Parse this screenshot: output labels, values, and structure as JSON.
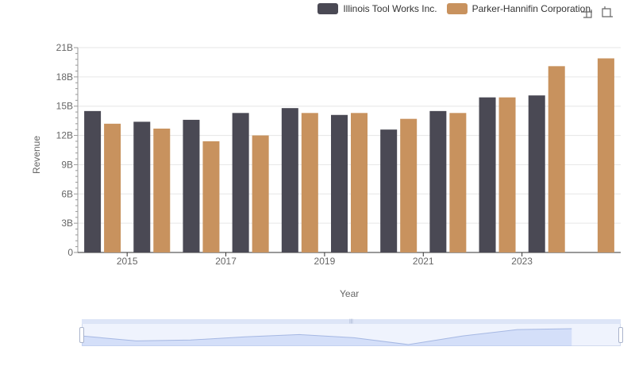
{
  "legend": {
    "items": [
      {
        "label": "Illinois Tool Works Inc.",
        "color": "#4a4954"
      },
      {
        "label": "Parker-Hannifin Corporation",
        "color": "#c8925e"
      }
    ]
  },
  "toolbox": {
    "icons": [
      "zoom-icon",
      "restore-icon"
    ]
  },
  "chart_data": {
    "type": "bar",
    "xlabel": "Year",
    "ylabel": "Revenue",
    "ylim": [
      0,
      21000000000
    ],
    "y_ticks": [
      "0",
      "3B",
      "6B",
      "9B",
      "12B",
      "15B",
      "18B",
      "21B"
    ],
    "x_tick_labels": [
      "2015",
      "2017",
      "2019",
      "2021",
      "2023"
    ],
    "categories": [
      "2014",
      "2015",
      "2016",
      "2017",
      "2018",
      "2019",
      "2020",
      "2021",
      "2022",
      "2023",
      "2024"
    ],
    "series": [
      {
        "name": "Illinois Tool Works Inc.",
        "color": "#4a4954",
        "values": [
          14500000000,
          13400000000,
          13600000000,
          14300000000,
          14800000000,
          14100000000,
          12600000000,
          14500000000,
          15900000000,
          16100000000,
          null
        ]
      },
      {
        "name": "Parker-Hannifin Corporation",
        "color": "#c8925e",
        "values": [
          13200000000,
          12700000000,
          11400000000,
          12000000000,
          14300000000,
          14300000000,
          13700000000,
          14300000000,
          15900000000,
          19100000000,
          19900000000
        ]
      }
    ],
    "grid": true,
    "legend_position": "top-right"
  }
}
